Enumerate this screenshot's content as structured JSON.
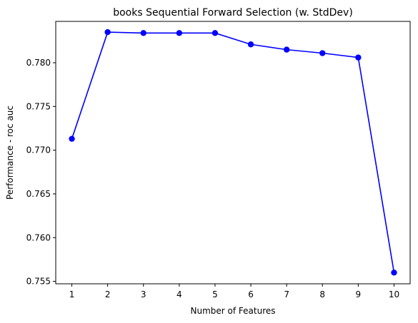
{
  "chart_data": {
    "type": "line",
    "title": "books Sequential Forward Selection (w. StdDev)",
    "xlabel": "Number of Features",
    "ylabel": "Performance - roc auc",
    "x": [
      1,
      2,
      3,
      4,
      5,
      6,
      7,
      8,
      9,
      10
    ],
    "series": [
      {
        "values": [
          0.7713,
          0.7835,
          0.7834,
          0.7834,
          0.7834,
          0.7821,
          0.7815,
          0.7811,
          0.7806,
          0.756
        ]
      }
    ],
    "xticks": [
      "1",
      "2",
      "3",
      "4",
      "5",
      "6",
      "7",
      "8",
      "9",
      "10"
    ],
    "yticks": [
      "0.755",
      "0.760",
      "0.765",
      "0.770",
      "0.775",
      "0.780"
    ],
    "xlim": [
      0.55,
      10.45
    ],
    "ylim": [
      0.75472,
      0.78473
    ],
    "grid": false,
    "line_color": "#0000ff",
    "marker_color": "#0000ff"
  }
}
